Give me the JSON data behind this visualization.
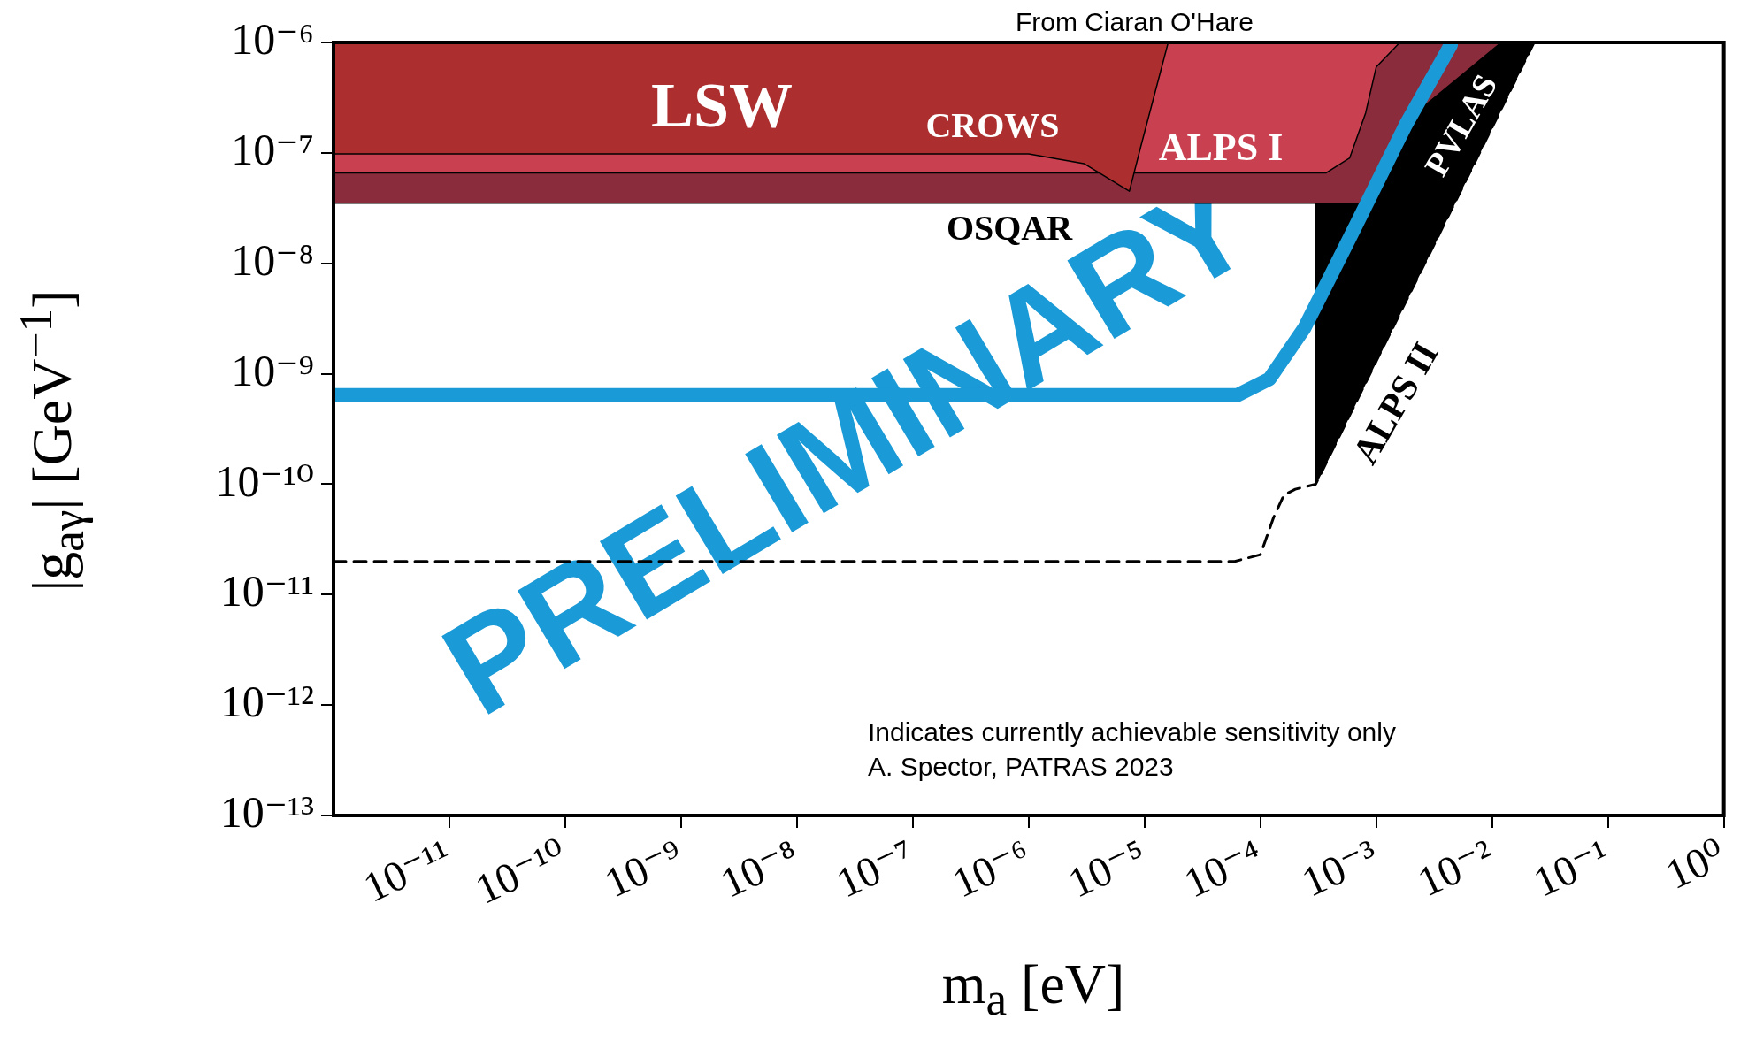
{
  "chart_data": {
    "type": "area",
    "title": "From Ciaran O'Hare",
    "xlabel": "m$_{a}$ [eV]",
    "ylabel": "|g$_{aγ}$| [GeV$^{−1}$]",
    "log": "xy",
    "grid": false,
    "legend": false,
    "xlim": [
      1e-12,
      1
    ],
    "ylim": [
      1e-13,
      1e-06
    ],
    "xticks": [
      {
        "value": 1e-11,
        "label": "10⁻¹¹"
      },
      {
        "value": 1e-10,
        "label": "10⁻¹⁰"
      },
      {
        "value": 1e-09,
        "label": "10⁻⁹"
      },
      {
        "value": 1e-08,
        "label": "10⁻⁸"
      },
      {
        "value": 1e-07,
        "label": "10⁻⁷"
      },
      {
        "value": 1e-06,
        "label": "10⁻⁶"
      },
      {
        "value": 1e-05,
        "label": "10⁻⁵"
      },
      {
        "value": 0.0001,
        "label": "10⁻⁴"
      },
      {
        "value": 0.001,
        "label": "10⁻³"
      },
      {
        "value": 0.01,
        "label": "10⁻²"
      },
      {
        "value": 0.1,
        "label": "10⁻¹"
      },
      {
        "value": 1,
        "label": "10⁰"
      }
    ],
    "yticks": [
      {
        "value": 1e-13,
        "label": "10⁻¹³"
      },
      {
        "value": 1e-12,
        "label": "10⁻¹²"
      },
      {
        "value": 1e-11,
        "label": "10⁻¹¹"
      },
      {
        "value": 1e-10,
        "label": "10⁻¹⁰"
      },
      {
        "value": 1e-09,
        "label": "10⁻⁹"
      },
      {
        "value": 1e-08,
        "label": "10⁻⁸"
      },
      {
        "value": 1e-07,
        "label": "10⁻⁷"
      },
      {
        "value": 1e-06,
        "label": "10⁻⁶"
      }
    ],
    "series": [
      {
        "name": "CROWS",
        "color": "#ad2e2e",
        "x": [
          1e-12,
          1e-12,
          1e-06,
          3e-06,
          7.4e-06,
          9.3e-06,
          1.6e-05
        ],
        "values": [
          1e-06,
          9.8e-08,
          9.8e-08,
          8e-08,
          4.5e-08,
          1.15e-07,
          1e-06
        ]
      },
      {
        "name": "ALPS I",
        "color": "#c94050",
        "x": [
          1e-12,
          1e-12,
          0.00037,
          0.00059,
          0.00081,
          0.001,
          0.0016
        ],
        "values": [
          1e-06,
          6.6e-08,
          6.6e-08,
          9e-08,
          2.3e-07,
          6e-07,
          1e-06
        ]
      },
      {
        "name": "OSQAR",
        "color": "#8b2c3c",
        "x": [
          1e-12,
          1e-12,
          0.00072,
          0.00115,
          0.0022,
          0.012
        ],
        "values": [
          1e-06,
          3.5e-08,
          3.5e-08,
          7e-08,
          2.3e-07,
          1e-06
        ]
      },
      {
        "name": "PVLAS",
        "color": "#000000",
        "x": [
          0.0003,
          0.0003,
          0.001,
          0.01,
          0.023
        ],
        "values": [
          1e-06,
          1e-10,
          1.3e-09,
          1.7e-07,
          1e-06
        ]
      },
      {
        "name": "ALPS II",
        "type": "line",
        "line_style": "dashed",
        "color": "#000000",
        "x": [
          1e-12,
          6e-05,
          0.0001,
          0.00013,
          0.00016,
          0.0002,
          0.0003,
          0.001,
          0.01,
          0.023
        ],
        "values": [
          2e-11,
          2e-11,
          2.3e-11,
          5e-11,
          8e-11,
          9e-11,
          1e-10,
          1.3e-09,
          1.7e-07,
          1e-06
        ]
      },
      {
        "type": "line",
        "color": "#1a9ad6",
        "x": [
          1e-12,
          6.3e-05,
          0.00012,
          0.00024,
          0.00059,
          0.0018,
          0.0044
        ],
        "values": [
          6.4e-10,
          6.4e-10,
          9e-10,
          2.6e-09,
          1.7e-08,
          1.8e-07,
          9.5e-07
        ]
      }
    ],
    "annotations": [
      "LSW",
      "Indicates currently achievable sensitivity only",
      "A. Spector, PATRAS 2023",
      "PRELIMINARY"
    ]
  }
}
